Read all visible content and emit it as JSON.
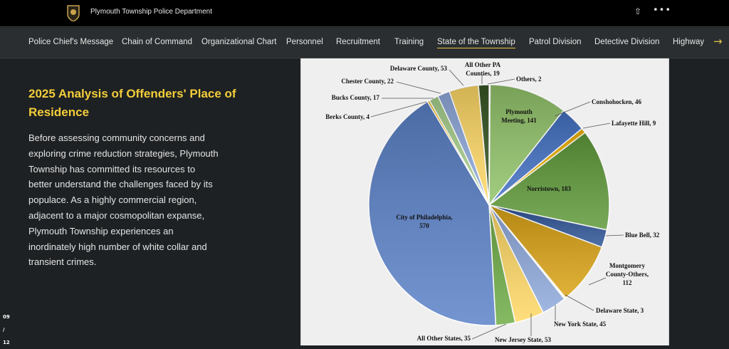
{
  "header": {
    "site_title": "Plymouth Township Police Department",
    "share_icon": "share-icon",
    "more_icon": "more-icon"
  },
  "nav": {
    "items": [
      "Police Chief's Message",
      "Chain of Command",
      "Organizational Chart",
      "Personnel",
      "Recruitment",
      "Training",
      "State of the Township",
      "Patrol Division",
      "Detective Division",
      "Highway"
    ],
    "active": "State of the Township",
    "next_arrow": "→"
  },
  "content": {
    "title": "2025 Analysis of Offenders' Place of Residence",
    "body": "Before assessing community concerns and exploring crime reduction strategies, Plymouth Township has committed its resources to better understand the challenges faced by its populace. As a highly commercial region, adjacent to a major cosmopolitan expanse, Plymouth Township experiences an inordinately high number of white collar and transient crimes."
  },
  "pager": {
    "current": "09",
    "sep": "/",
    "total": "12"
  },
  "chart_data": {
    "type": "pie",
    "title": "",
    "slices": [
      {
        "label": "Others",
        "value": 2,
        "color": "#ffe699"
      },
      {
        "label": "Plymouth Meeting",
        "value": 141,
        "color": "#92c46a"
      },
      {
        "label": "Conshohocken",
        "value": 46,
        "color": "#4472c4"
      },
      {
        "label": "Lafayette Hill",
        "value": 9,
        "color": "#f4b400"
      },
      {
        "label": "Norristown",
        "value": 183,
        "color": "#5f9a3a"
      },
      {
        "label": "Blue Bell",
        "value": 32,
        "color": "#2f5597"
      },
      {
        "label": "Montgomery County-Others",
        "value": 112,
        "color": "#dba416"
      },
      {
        "label": "Delaware State",
        "value": 3,
        "color": "#fff2cc"
      },
      {
        "label": "New York State",
        "value": 45,
        "color": "#8faadc"
      },
      {
        "label": "New Jersey State",
        "value": 53,
        "color": "#ffd966"
      },
      {
        "label": "All Other States",
        "value": 35,
        "color": "#70ad47"
      },
      {
        "label": "City of Philadelphia",
        "value": 570,
        "color": "#5b82c8"
      },
      {
        "label": "Berks County",
        "value": 4,
        "color": "#ffc000"
      },
      {
        "label": "Bucks County",
        "value": 17,
        "color": "#a9d18e"
      },
      {
        "label": "Chester County",
        "value": 22,
        "color": "#8faadc"
      },
      {
        "label": "Delaware County",
        "value": 53,
        "color": "#ffd966"
      },
      {
        "label": "All Other PA Counties",
        "value": 19,
        "color": "#375623"
      }
    ]
  }
}
